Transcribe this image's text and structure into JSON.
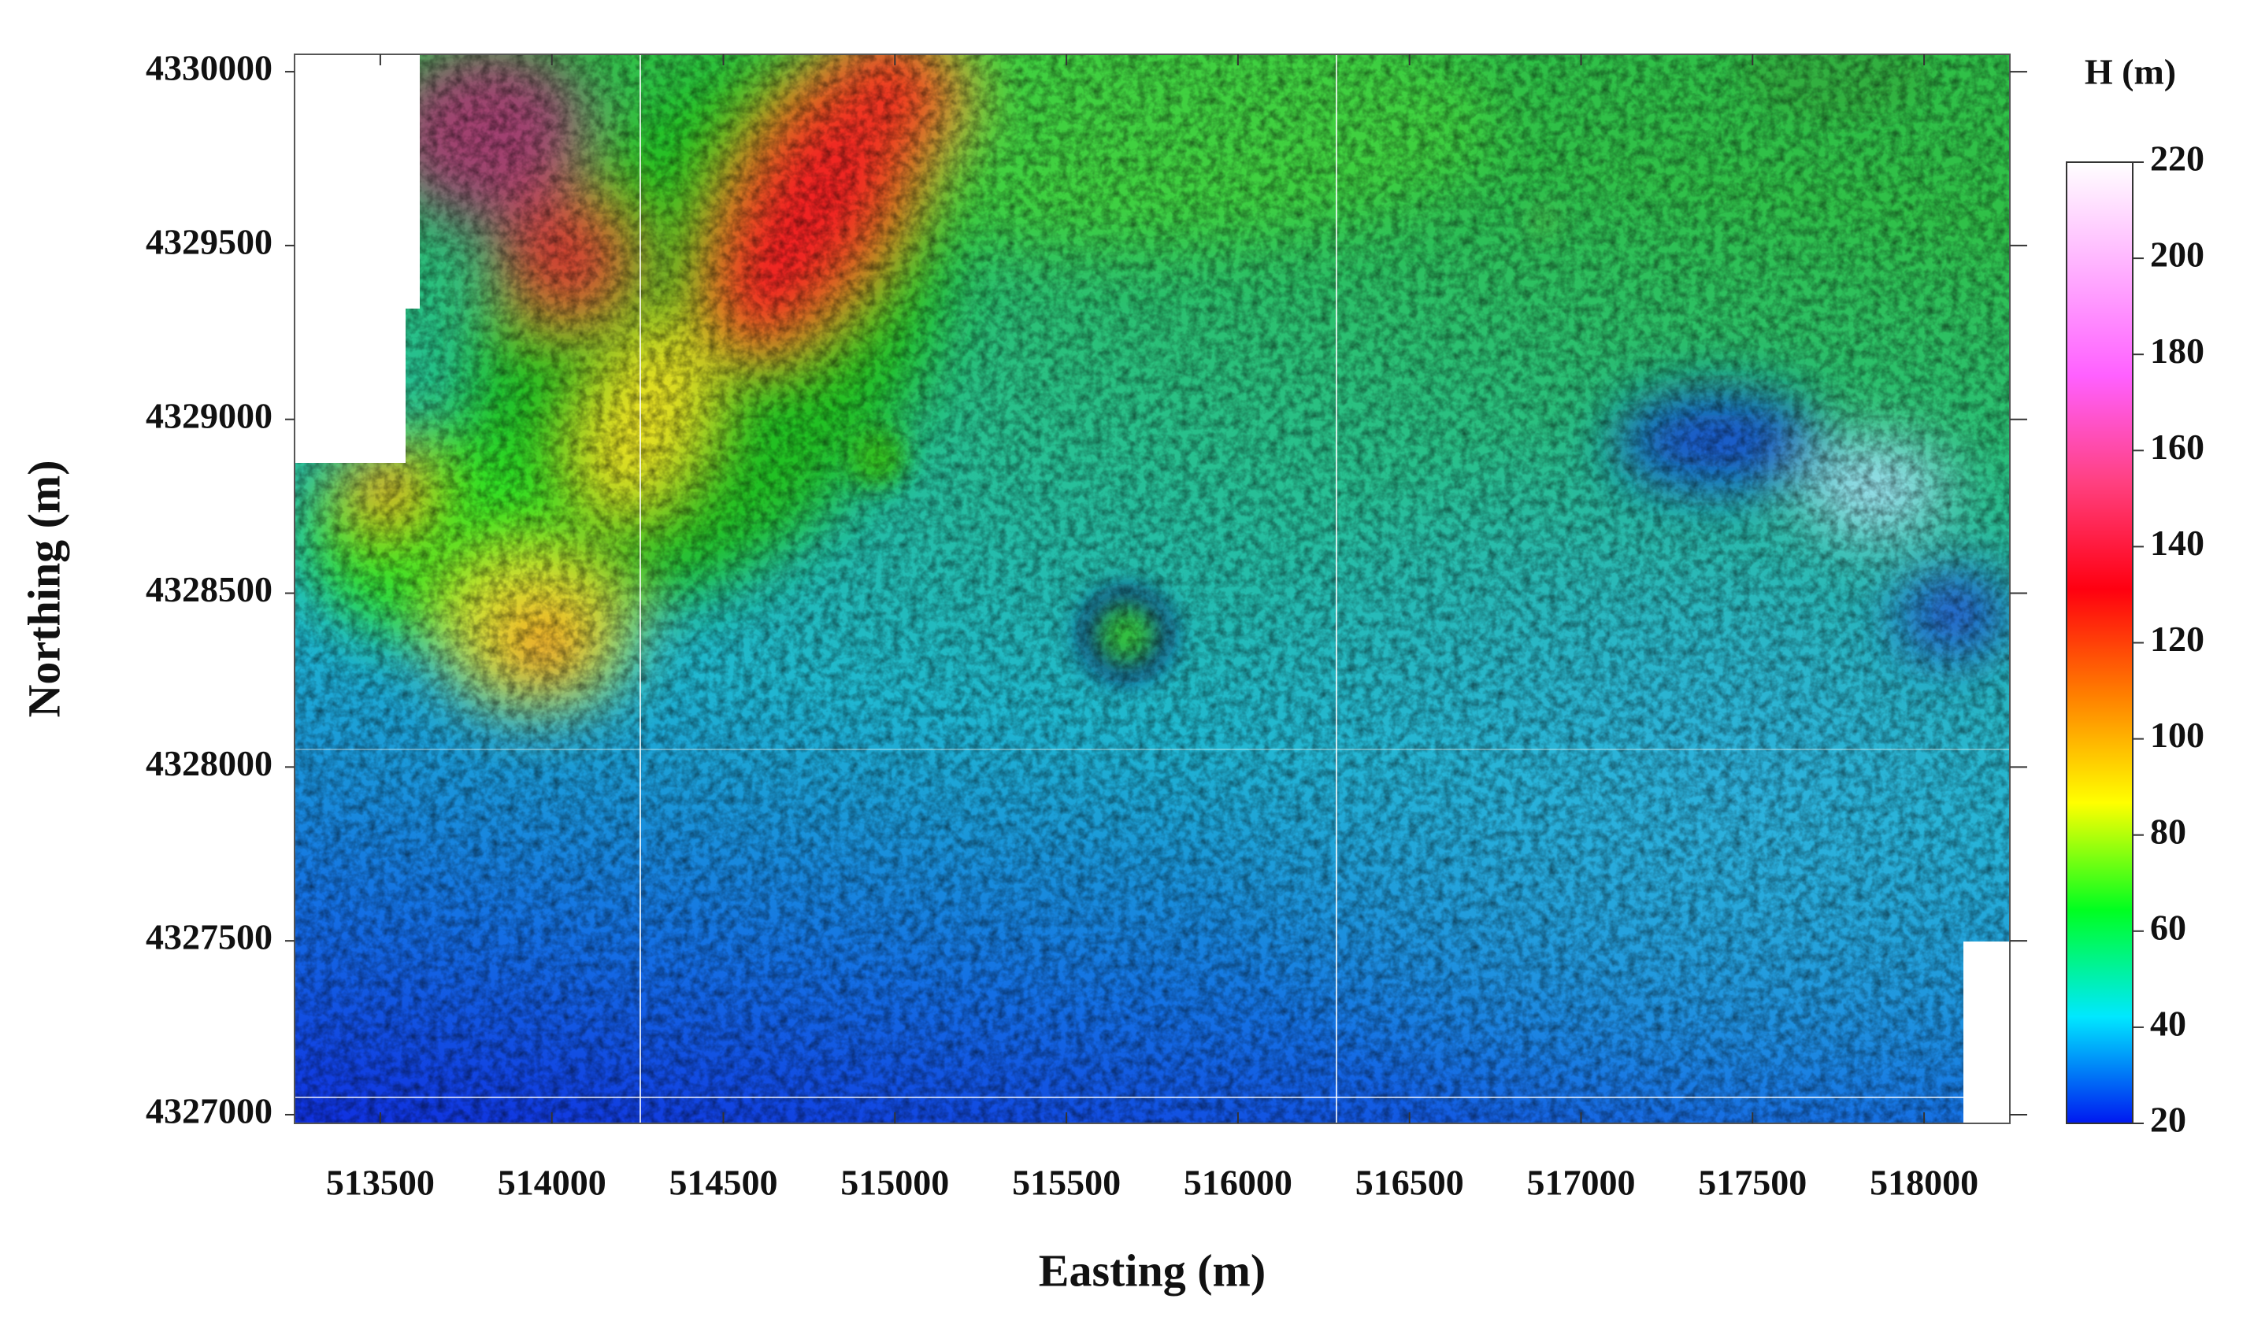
{
  "chart_data": {
    "type": "heatmap",
    "x_label": "Easting (m)",
    "y_label": "Northing (m)",
    "xlim": [
      513250,
      518250
    ],
    "xticks": [
      513500,
      514000,
      514500,
      515000,
      515500,
      516000,
      516500,
      517000,
      517500,
      518000
    ],
    "ylim": [
      4326975,
      4330050
    ],
    "yticks": [
      4327000,
      4327500,
      4328000,
      4328500,
      4329000,
      4329500,
      4330000
    ],
    "colorbar": {
      "title": "H (m)",
      "lim": [
        20,
        220
      ],
      "ticks": [
        20,
        40,
        60,
        80,
        100,
        120,
        140,
        160,
        180,
        200,
        220
      ],
      "colors": [
        "#0018f0",
        "#00e8ff",
        "#00ff20",
        "#ffff00",
        "#ff8000",
        "#ff0010",
        "#ff4080",
        "#ff60ff",
        "#ffb0ff",
        "#ffffff"
      ]
    }
  }
}
